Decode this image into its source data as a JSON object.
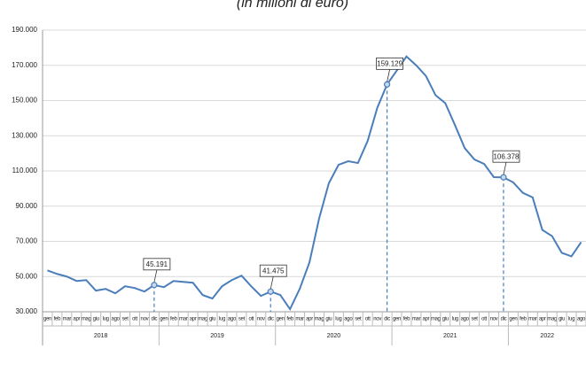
{
  "chart_data": {
    "type": "line",
    "title": "(in milioni di euro)",
    "categories": [
      "gen",
      "feb",
      "mar",
      "apr",
      "mag",
      "giu",
      "lug",
      "ago",
      "set",
      "ott",
      "nov",
      "dic",
      "gen",
      "feb",
      "mar",
      "apr",
      "mag",
      "giu",
      "lug",
      "ago",
      "set",
      "ott",
      "nov",
      "dic",
      "gen",
      "feb",
      "mar",
      "apr",
      "mag",
      "giu",
      "lug",
      "ago",
      "set",
      "ott",
      "nov",
      "dic",
      "gen",
      "feb",
      "mar",
      "apr",
      "mag",
      "giu",
      "lug",
      "ago",
      "set",
      "ott",
      "nov",
      "dic",
      "gen",
      "feb",
      "mar",
      "apr",
      "mag",
      "giu",
      "lug",
      "ago"
    ],
    "years": [
      "2018",
      "2019",
      "2020",
      "2021",
      "2022"
    ],
    "color": "#4a7ebb",
    "values": [
      53500,
      51500,
      50000,
      47500,
      48000,
      42000,
      43000,
      40500,
      44500,
      43500,
      41500,
      45191,
      44000,
      47500,
      47000,
      46500,
      39500,
      37500,
      44500,
      48000,
      50500,
      44500,
      39000,
      41475,
      39500,
      31500,
      43000,
      58000,
      83000,
      103000,
      113500,
      115500,
      114500,
      127000,
      146000,
      159129,
      167000,
      175000,
      170000,
      164000,
      153000,
      148500,
      136000,
      123000,
      116500,
      114000,
      106500,
      106378,
      103500,
      97500,
      95000,
      76500,
      73000,
      63500,
      61500,
      69500
    ],
    "value_labels": [
      null,
      null,
      null,
      null,
      null,
      null,
      null,
      null,
      null,
      null,
      null,
      "45.191",
      null,
      null,
      null,
      null,
      null,
      null,
      null,
      null,
      null,
      null,
      null,
      "41.475",
      null,
      null,
      null,
      null,
      null,
      null,
      null,
      null,
      null,
      null,
      null,
      "159.129",
      null,
      null,
      null,
      null,
      null,
      null,
      null,
      null,
      null,
      null,
      null,
      "106.378",
      null,
      null,
      null,
      null,
      null,
      null,
      null,
      null
    ],
    "ylim": [
      30000,
      190000
    ],
    "yticks": [
      {
        "value": 30000,
        "label": "30.000"
      },
      {
        "value": 50000,
        "label": "50.000"
      },
      {
        "value": 70000,
        "label": "70.000"
      },
      {
        "value": 90000,
        "label": "90.000"
      },
      {
        "value": 110000,
        "label": "110.000"
      },
      {
        "value": 130000,
        "label": "130.000"
      },
      {
        "value": 150000,
        "label": "150.000"
      },
      {
        "value": 170000,
        "label": "170.000"
      },
      {
        "value": 190000,
        "label": "190.000"
      }
    ],
    "grid": true
  }
}
